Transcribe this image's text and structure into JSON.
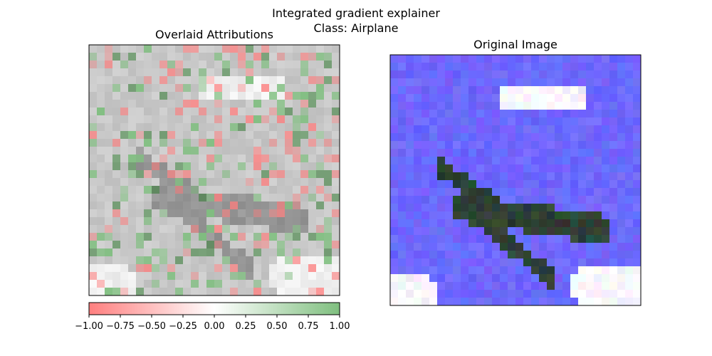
{
  "figure": {
    "title": "Integrated gradient explainer",
    "subtitle": "Class: Airplane"
  },
  "chart_data": [
    {
      "type": "heatmap",
      "title": "Overlaid Attributions",
      "grid": false,
      "axes_ticks": false,
      "colorbar": {
        "orientation": "horizontal",
        "placement": "bottom",
        "range": [
          -1.0,
          1.0
        ],
        "ticks": [
          -1.0,
          -0.75,
          -0.5,
          -0.25,
          0.0,
          0.25,
          0.5,
          0.75,
          1.0
        ],
        "tick_labels": [
          "−1.00",
          "−0.75",
          "−0.50",
          "−0.25",
          "0.00",
          "0.25",
          "0.50",
          "0.75",
          "1.00"
        ],
        "colors": {
          "negative": "#ff7f7f",
          "zero": "#ffffff",
          "positive": "#7fbf7f"
        }
      }
    },
    {
      "type": "image",
      "title": "Original Image",
      "grid": false,
      "axes_ticks": false,
      "colors": {
        "sky": "#6a6aff",
        "cloud": "#ffffff",
        "plane": "#2f3a32"
      }
    }
  ]
}
